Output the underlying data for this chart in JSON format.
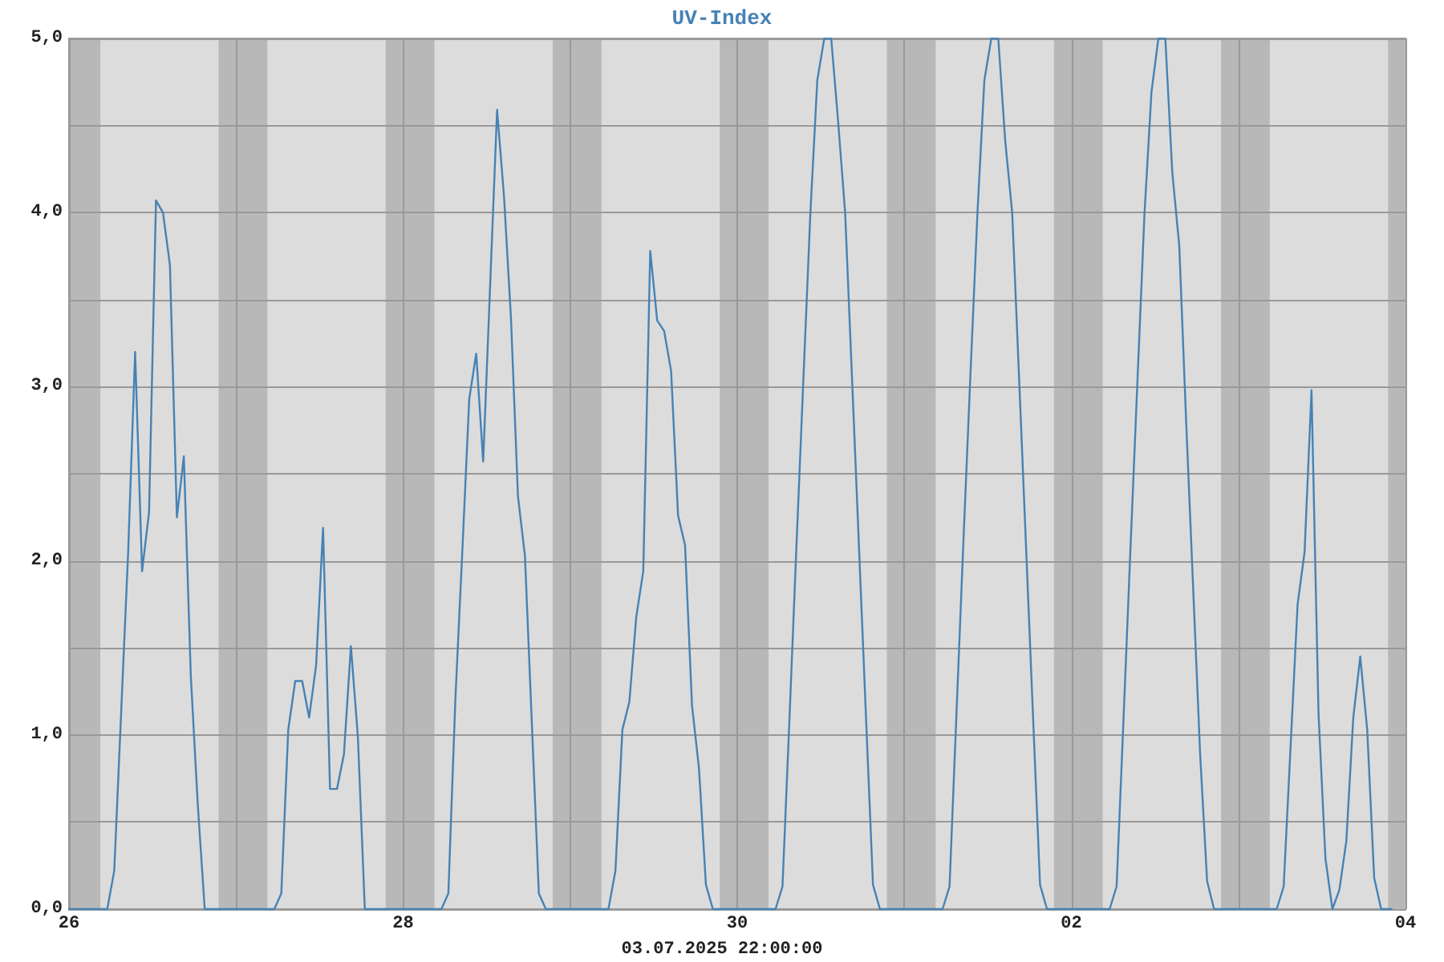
{
  "chart_data": {
    "type": "line",
    "title": "UV-Index",
    "annotations": [
      "03.07.2025 22:00:00"
    ],
    "x": [
      "2025-06-26T00:00",
      "2025-06-26T05:30",
      "2025-06-26T06:30",
      "2025-06-26T08:30",
      "2025-06-26T09:30",
      "2025-06-26T10:30",
      "2025-06-26T11:30",
      "2025-06-26T12:30",
      "2025-06-26T13:30",
      "2025-06-26T14:30",
      "2025-06-26T15:30",
      "2025-06-26T16:30",
      "2025-06-26T17:30",
      "2025-06-26T18:30",
      "2025-06-26T19:30",
      "2025-06-27T05:30",
      "2025-06-27T06:30",
      "2025-06-27T07:30",
      "2025-06-27T08:30",
      "2025-06-27T09:30",
      "2025-06-27T10:30",
      "2025-06-27T11:30",
      "2025-06-27T12:30",
      "2025-06-27T13:30",
      "2025-06-27T14:30",
      "2025-06-27T15:30",
      "2025-06-27T16:30",
      "2025-06-27T17:30",
      "2025-06-27T18:30",
      "2025-06-28T05:30",
      "2025-06-28T06:30",
      "2025-06-28T07:30",
      "2025-06-28T08:30",
      "2025-06-28T09:30",
      "2025-06-28T10:30",
      "2025-06-28T11:30",
      "2025-06-28T13:30",
      "2025-06-28T14:30",
      "2025-06-28T15:30",
      "2025-06-28T16:30",
      "2025-06-28T17:30",
      "2025-06-28T19:30",
      "2025-06-28T20:30",
      "2025-06-29T05:30",
      "2025-06-29T06:30",
      "2025-06-29T07:30",
      "2025-06-29T08:30",
      "2025-06-29T09:30",
      "2025-06-29T10:30",
      "2025-06-29T11:30",
      "2025-06-29T12:30",
      "2025-06-29T13:30",
      "2025-06-29T14:30",
      "2025-06-29T15:30",
      "2025-06-29T16:30",
      "2025-06-29T17:30",
      "2025-06-29T18:30",
      "2025-06-29T19:30",
      "2025-06-29T20:30",
      "2025-06-30T05:30",
      "2025-06-30T06:30",
      "2025-06-30T07:30",
      "2025-06-30T08:30",
      "2025-06-30T09:30",
      "2025-06-30T10:30",
      "2025-06-30T11:30",
      "2025-06-30T12:30",
      "2025-06-30T13:30",
      "2025-06-30T14:30",
      "2025-06-30T15:30",
      "2025-06-30T16:30",
      "2025-06-30T17:30",
      "2025-06-30T18:30",
      "2025-06-30T19:30",
      "2025-06-30T20:30",
      "2025-07-01T05:30",
      "2025-07-01T06:30",
      "2025-07-01T07:30",
      "2025-07-01T08:30",
      "2025-07-01T09:30",
      "2025-07-01T10:30",
      "2025-07-01T11:30",
      "2025-07-01T12:30",
      "2025-07-01T13:30",
      "2025-07-01T14:30",
      "2025-07-01T15:30",
      "2025-07-01T16:30",
      "2025-07-01T17:30",
      "2025-07-01T18:30",
      "2025-07-01T19:30",
      "2025-07-01T20:30",
      "2025-07-02T05:30",
      "2025-07-02T06:30",
      "2025-07-02T07:30",
      "2025-07-02T08:30",
      "2025-07-02T09:30",
      "2025-07-02T10:30",
      "2025-07-02T11:30",
      "2025-07-02T12:30",
      "2025-07-02T13:30",
      "2025-07-02T14:30",
      "2025-07-02T15:30",
      "2025-07-02T16:30",
      "2025-07-02T17:30",
      "2025-07-02T18:30",
      "2025-07-02T19:30",
      "2025-07-02T20:30",
      "2025-07-03T05:30",
      "2025-07-03T06:30",
      "2025-07-03T07:30",
      "2025-07-03T08:30",
      "2025-07-03T09:30",
      "2025-07-03T10:30",
      "2025-07-03T11:30",
      "2025-07-03T12:30",
      "2025-07-03T13:30",
      "2025-07-03T14:30",
      "2025-07-03T15:30",
      "2025-07-03T16:30",
      "2025-07-03T17:30",
      "2025-07-03T18:30",
      "2025-07-03T19:30",
      "2025-07-03T20:30",
      "2025-07-03T22:00"
    ],
    "series": [
      {
        "color": "#4682b4",
        "values": [
          0,
          0,
          0.22,
          2.05,
          3.2,
          1.94,
          2.28,
          4.07,
          4.0,
          3.7,
          2.25,
          2.6,
          1.34,
          0.6,
          0,
          0,
          0.09,
          1.03,
          1.31,
          1.31,
          1.1,
          1.4,
          2.19,
          0.69,
          0.69,
          0.89,
          1.51,
          0.99,
          0,
          0,
          0.09,
          1.2,
          2.05,
          2.93,
          3.19,
          2.57,
          4.59,
          4.09,
          3.39,
          2.37,
          2.03,
          0.09,
          0,
          0,
          0.22,
          1.03,
          1.19,
          1.68,
          1.94,
          3.78,
          3.38,
          3.32,
          3.09,
          2.26,
          2.09,
          1.17,
          0.81,
          0.14,
          0,
          0,
          0.13,
          1.09,
          2.08,
          3.04,
          3.99,
          4.76,
          5.0,
          5.0,
          4.52,
          4.0,
          3.04,
          2.07,
          1.1,
          0.14,
          0,
          0,
          0.13,
          1.13,
          2.12,
          3.07,
          3.99,
          4.76,
          5.0,
          5.0,
          4.41,
          4.0,
          3.04,
          2.07,
          1.1,
          0.14,
          0,
          0,
          0.13,
          1.1,
          2.08,
          3.04,
          3.99,
          4.69,
          5.0,
          5.0,
          4.23,
          3.81,
          2.79,
          1.84,
          0.89,
          0.16,
          0,
          0,
          0.13,
          0.94,
          1.75,
          2.05,
          2.98,
          1.13,
          0.29,
          0,
          0.11,
          0.39,
          1.1,
          1.45,
          1.03,
          0.18,
          0,
          0
        ]
      }
    ],
    "xlim": [
      "2025-06-26",
      "2025-07-04"
    ],
    "xticks": [
      {
        "value": "2025-06-26",
        "label": "26"
      },
      {
        "value": "2025-06-27",
        "label": null
      },
      {
        "value": "2025-06-28",
        "label": "28"
      },
      {
        "value": "2025-06-29",
        "label": null
      },
      {
        "value": "2025-06-30",
        "label": "30"
      },
      {
        "value": "2025-07-01",
        "label": null
      },
      {
        "value": "2025-07-02",
        "label": "02"
      },
      {
        "value": "2025-07-03",
        "label": null
      },
      {
        "value": "2025-07-04",
        "label": "04"
      }
    ],
    "ylim": [
      0,
      5
    ],
    "yticks": [
      {
        "value": 0,
        "label": "0,0"
      },
      {
        "value": 0.5,
        "label": null
      },
      {
        "value": 1,
        "label": "1,0"
      },
      {
        "value": 1.5,
        "label": null
      },
      {
        "value": 2,
        "label": "2,0"
      },
      {
        "value": 2.5,
        "label": null
      },
      {
        "value": 3,
        "label": "3,0"
      },
      {
        "value": 3.5,
        "label": null
      },
      {
        "value": 4,
        "label": "4,0"
      },
      {
        "value": 4.5,
        "label": null
      },
      {
        "value": 5,
        "label": "5,0"
      }
    ],
    "bands": [
      {
        "axis": "x",
        "from": "2025-06-26T00:00",
        "to": "2025-06-26T04:30",
        "color": "#b8b8b8"
      },
      {
        "axis": "x",
        "from": "2025-06-26T21:30",
        "to": "2025-06-27T04:30",
        "color": "#b8b8b8"
      },
      {
        "axis": "x",
        "from": "2025-06-27T21:30",
        "to": "2025-06-28T04:30",
        "color": "#b8b8b8"
      },
      {
        "axis": "x",
        "from": "2025-06-28T21:30",
        "to": "2025-06-29T04:30",
        "color": "#b8b8b8"
      },
      {
        "axis": "x",
        "from": "2025-06-29T21:30",
        "to": "2025-06-30T04:30",
        "color": "#b8b8b8"
      },
      {
        "axis": "x",
        "from": "2025-06-30T21:30",
        "to": "2025-07-01T04:30",
        "color": "#b8b8b8"
      },
      {
        "axis": "x",
        "from": "2025-07-01T21:30",
        "to": "2025-07-02T04:30",
        "color": "#b8b8b8"
      },
      {
        "axis": "x",
        "from": "2025-07-02T21:30",
        "to": "2025-07-03T04:30",
        "color": "#b8b8b8"
      },
      {
        "axis": "x",
        "from": "2025-07-03T21:30",
        "to": "2025-07-04T00:00",
        "color": "#b8b8b8"
      }
    ],
    "grid": true,
    "legend": false,
    "marker": "none",
    "line_style": "solid"
  }
}
